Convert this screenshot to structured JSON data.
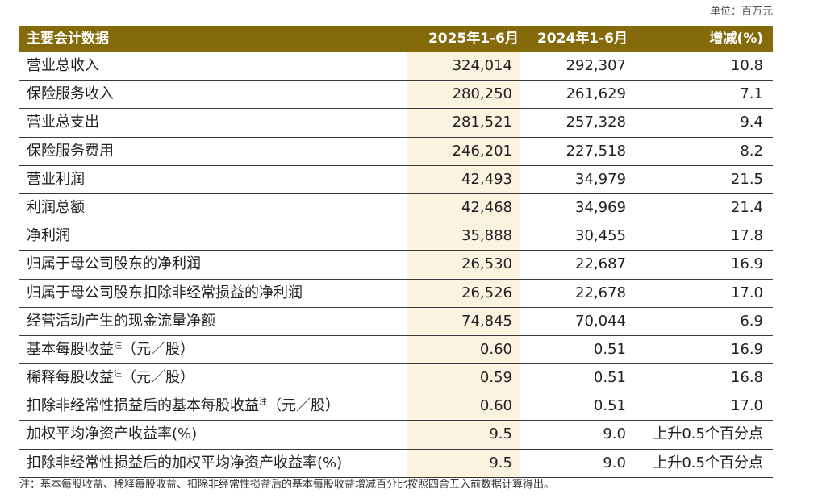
{
  "unit_label": "单位：百万元",
  "table": {
    "headers": [
      "主要会计数据",
      "2025年1-6月",
      "2024年1-6月",
      "增减(%)"
    ],
    "rows": [
      {
        "label": "营业总收入",
        "note_mark": "",
        "suffix": "",
        "y2025": "324,014",
        "y2024": "292,307",
        "change": "10.8"
      },
      {
        "label": "保险服务收入",
        "note_mark": "",
        "suffix": "",
        "y2025": "280,250",
        "y2024": "261,629",
        "change": "7.1"
      },
      {
        "label": "营业总支出",
        "note_mark": "",
        "suffix": "",
        "y2025": "281,521",
        "y2024": "257,328",
        "change": "9.4"
      },
      {
        "label": "保险服务费用",
        "note_mark": "",
        "suffix": "",
        "y2025": "246,201",
        "y2024": "227,518",
        "change": "8.2"
      },
      {
        "label": "营业利润",
        "note_mark": "",
        "suffix": "",
        "y2025": "42,493",
        "y2024": "34,979",
        "change": "21.5"
      },
      {
        "label": "利润总额",
        "note_mark": "",
        "suffix": "",
        "y2025": "42,468",
        "y2024": "34,969",
        "change": "21.4"
      },
      {
        "label": "净利润",
        "note_mark": "",
        "suffix": "",
        "y2025": "35,888",
        "y2024": "30,455",
        "change": "17.8"
      },
      {
        "label": "归属于母公司股东的净利润",
        "note_mark": "",
        "suffix": "",
        "y2025": "26,530",
        "y2024": "22,687",
        "change": "16.9"
      },
      {
        "label": "归属于母公司股东扣除非经常损益的净利润",
        "note_mark": "",
        "suffix": "",
        "y2025": "26,526",
        "y2024": "22,678",
        "change": "17.0"
      },
      {
        "label": "经营活动产生的现金流量净额",
        "note_mark": "",
        "suffix": "",
        "y2025": "74,845",
        "y2024": "70,044",
        "change": "6.9"
      },
      {
        "label": "基本每股收益",
        "note_mark": "注",
        "suffix": "（元／股）",
        "y2025": "0.60",
        "y2024": "0.51",
        "change": "16.9"
      },
      {
        "label": "稀释每股收益",
        "note_mark": "注",
        "suffix": "（元／股）",
        "y2025": "0.59",
        "y2024": "0.51",
        "change": "16.8"
      },
      {
        "label": "扣除非经常性损益后的基本每股收益",
        "note_mark": "注",
        "suffix": "（元／股）",
        "y2025": "0.60",
        "y2024": "0.51",
        "change": "17.0"
      },
      {
        "label": "加权平均净资产收益率(%)",
        "note_mark": "",
        "suffix": "",
        "y2025": "9.5",
        "y2024": "9.0",
        "change": "上升0.5个百分点"
      },
      {
        "label": "扣除非经常性损益后的加权平均净资产收益率(%)",
        "note_mark": "",
        "suffix": "",
        "y2025": "9.5",
        "y2024": "9.0",
        "change": "上升0.5个百分点"
      }
    ]
  },
  "footnote": "注：基本每股收益、稀释每股收益、扣除非经常性损益后的基本每股收益增减百分比按照四舍五入前数据计算得出。",
  "colors": {
    "header_bg": "#846a0a",
    "highlight_col": "#fbf2df",
    "rule": "#3a3a3a"
  }
}
